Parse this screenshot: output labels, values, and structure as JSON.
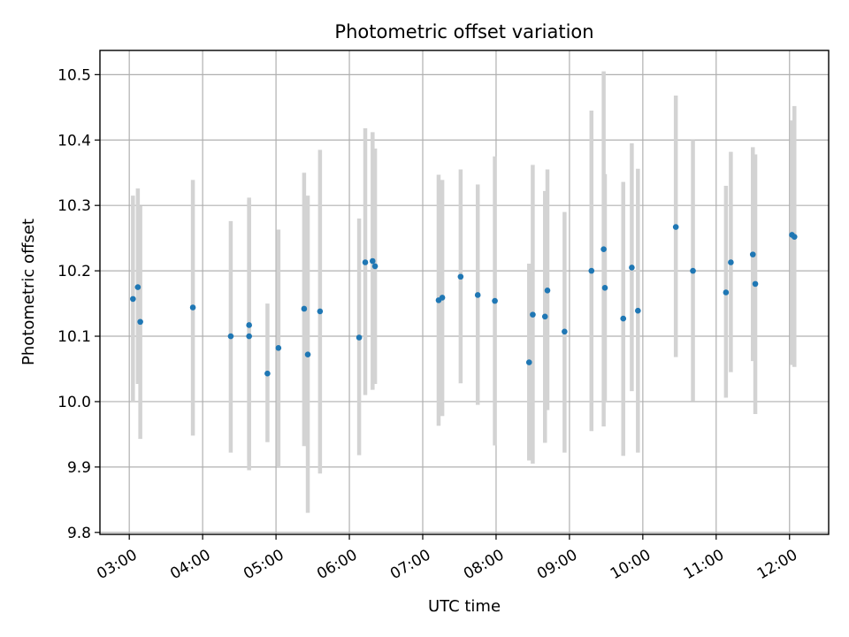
{
  "chart_data": {
    "type": "scatter",
    "title": "Photometric offset variation",
    "xlabel": "UTC time",
    "ylabel": "Photometric offset",
    "x_ticks": [
      "03:00",
      "04:00",
      "05:00",
      "06:00",
      "07:00",
      "08:00",
      "09:00",
      "10:00",
      "11:00",
      "12:00"
    ],
    "y_ticks": [
      "9.8",
      "9.9",
      "10.0",
      "10.1",
      "10.2",
      "10.3",
      "10.4",
      "10.5"
    ],
    "xlim": [
      "02:36",
      "12:32"
    ],
    "ylim": [
      9.797,
      10.537
    ],
    "grid": true,
    "errorbar_color": "#d3d3d3",
    "point_color": "#1f77b4",
    "series": [
      {
        "points": [
          {
            "x": "03:03",
            "y": 10.157,
            "lo": 10.0,
            "hi": 10.315
          },
          {
            "x": "03:07",
            "y": 10.175,
            "lo": 10.027,
            "hi": 10.326
          },
          {
            "x": "03:09",
            "y": 10.122,
            "lo": 9.943,
            "hi": 10.299
          },
          {
            "x": "03:52",
            "y": 10.144,
            "lo": 9.948,
            "hi": 10.339
          },
          {
            "x": "04:23",
            "y": 10.1,
            "lo": 9.922,
            "hi": 10.276
          },
          {
            "x": "04:38",
            "y": 10.117,
            "lo": 9.895,
            "hi": 10.312
          },
          {
            "x": "04:38",
            "y": 10.1,
            "lo": 9.91,
            "hi": 10.308
          },
          {
            "x": "04:53",
            "y": 10.043,
            "lo": 9.938,
            "hi": 10.15
          },
          {
            "x": "05:02",
            "y": 10.082,
            "lo": 9.9,
            "hi": 10.263
          },
          {
            "x": "05:23",
            "y": 10.142,
            "lo": 9.932,
            "hi": 10.35
          },
          {
            "x": "05:26",
            "y": 10.072,
            "lo": 9.83,
            "hi": 10.315
          },
          {
            "x": "05:36",
            "y": 10.138,
            "lo": 9.89,
            "hi": 10.385
          },
          {
            "x": "06:08",
            "y": 10.098,
            "lo": 9.918,
            "hi": 10.28
          },
          {
            "x": "06:13",
            "y": 10.213,
            "lo": 10.01,
            "hi": 10.418
          },
          {
            "x": "06:19",
            "y": 10.215,
            "lo": 10.018,
            "hi": 10.412
          },
          {
            "x": "06:21",
            "y": 10.207,
            "lo": 10.027,
            "hi": 10.387
          },
          {
            "x": "07:13",
            "y": 10.155,
            "lo": 9.963,
            "hi": 10.347
          },
          {
            "x": "07:16",
            "y": 10.159,
            "lo": 9.978,
            "hi": 10.339
          },
          {
            "x": "07:31",
            "y": 10.191,
            "lo": 10.028,
            "hi": 10.355
          },
          {
            "x": "07:45",
            "y": 10.163,
            "lo": 9.995,
            "hi": 10.332
          },
          {
            "x": "07:59",
            "y": 10.154,
            "lo": 9.933,
            "hi": 10.375
          },
          {
            "x": "08:27",
            "y": 10.06,
            "lo": 9.91,
            "hi": 10.211
          },
          {
            "x": "08:30",
            "y": 10.133,
            "lo": 9.905,
            "hi": 10.362
          },
          {
            "x": "08:40",
            "y": 10.13,
            "lo": 9.937,
            "hi": 10.322
          },
          {
            "x": "08:42",
            "y": 10.17,
            "lo": 9.987,
            "hi": 10.355
          },
          {
            "x": "08:56",
            "y": 10.107,
            "lo": 9.922,
            "hi": 10.29
          },
          {
            "x": "09:18",
            "y": 10.2,
            "lo": 9.955,
            "hi": 10.445
          },
          {
            "x": "09:28",
            "y": 10.233,
            "lo": 9.962,
            "hi": 10.505
          },
          {
            "x": "09:29",
            "y": 10.174,
            "lo": 10.0,
            "hi": 10.348
          },
          {
            "x": "09:44",
            "y": 10.127,
            "lo": 9.917,
            "hi": 10.336
          },
          {
            "x": "09:51",
            "y": 10.205,
            "lo": 10.016,
            "hi": 10.395
          },
          {
            "x": "09:56",
            "y": 10.139,
            "lo": 9.922,
            "hi": 10.356
          },
          {
            "x": "10:27",
            "y": 10.267,
            "lo": 10.068,
            "hi": 10.468
          },
          {
            "x": "10:41",
            "y": 10.2,
            "lo": 10.001,
            "hi": 10.4
          },
          {
            "x": "11:08",
            "y": 10.167,
            "lo": 10.006,
            "hi": 10.33
          },
          {
            "x": "11:12",
            "y": 10.213,
            "lo": 10.045,
            "hi": 10.382
          },
          {
            "x": "11:30",
            "y": 10.225,
            "lo": 10.062,
            "hi": 10.389
          },
          {
            "x": "11:32",
            "y": 10.18,
            "lo": 9.981,
            "hi": 10.378
          },
          {
            "x": "12:02",
            "y": 10.255,
            "lo": 10.056,
            "hi": 10.43
          },
          {
            "x": "12:04",
            "y": 10.252,
            "lo": 10.053,
            "hi": 10.452
          }
        ]
      }
    ]
  }
}
